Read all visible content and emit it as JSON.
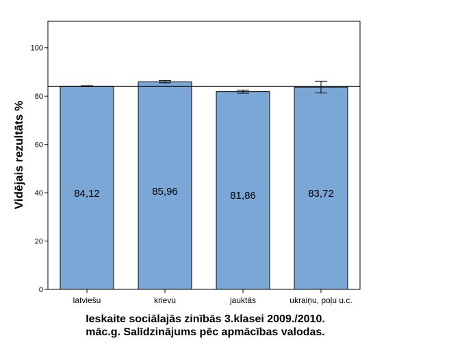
{
  "chart_data": {
    "type": "bar",
    "title": "",
    "xlabel": "",
    "ylabel": "Vidējais rezultāts %",
    "categories": [
      "latviešu",
      "krievu",
      "jauktās",
      "ukraiņu, poļu u.c."
    ],
    "values": [
      84.12,
      85.96,
      81.86,
      83.72
    ],
    "value_labels": [
      "84,12",
      "85,96",
      "81,86",
      "83,72"
    ],
    "error_bars": [
      {
        "low": 83.9,
        "high": 84.3
      },
      {
        "low": 85.5,
        "high": 86.4
      },
      {
        "low": 81.2,
        "high": 82.5
      },
      {
        "low": 81.3,
        "high": 86.2
      }
    ],
    "reference_line": 84.0,
    "ylim": [
      0,
      111
    ],
    "yticks": [
      0,
      20,
      40,
      60,
      80,
      100
    ],
    "grid": false,
    "bar_color": "#7ba7d6",
    "bar_edge_color": "#000000"
  },
  "caption": {
    "line1": "Ieskaite sociālajās zinībās 3.klasei 2009./2010.",
    "line2": "māc.g. Salīdzinājums pēc apmācības valodas."
  }
}
